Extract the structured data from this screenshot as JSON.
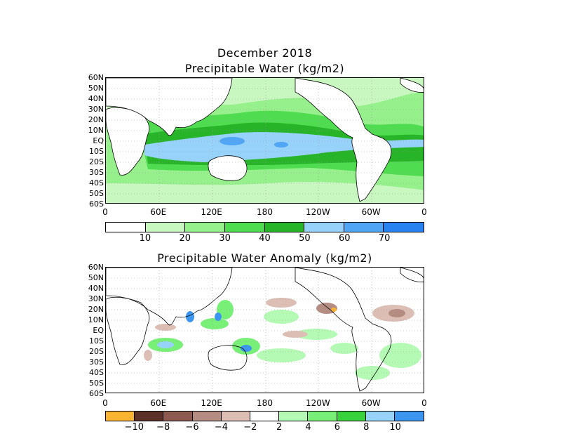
{
  "top_panel": {
    "title_line1": "December 2018",
    "title_line2": "Precipitable Water (kg/m2)",
    "lat_labels": [
      "60N",
      "50N",
      "40N",
      "30N",
      "20N",
      "10N",
      "EQ",
      "10S",
      "20S",
      "30S",
      "40S",
      "50S",
      "60S"
    ],
    "lon_labels": [
      "0",
      "60E",
      "120E",
      "180",
      "120W",
      "60W",
      "0"
    ],
    "colorbar": {
      "colors": [
        "#ffffff",
        "#c8f7c0",
        "#96f08c",
        "#50dc50",
        "#28b428",
        "#96d2fa",
        "#50a5f5",
        "#2882f0"
      ],
      "labels": [
        "10",
        "20",
        "30",
        "40",
        "50",
        "60",
        "70"
      ]
    }
  },
  "bottom_panel": {
    "title": "Precipitable Water Anomaly (kg/m2)",
    "lat_labels": [
      "60N",
      "50N",
      "40N",
      "30N",
      "20N",
      "10N",
      "EQ",
      "10S",
      "20S",
      "30S",
      "40S",
      "50S",
      "60S"
    ],
    "lon_labels": [
      "0",
      "60E",
      "120E",
      "180",
      "120W",
      "60W",
      "0"
    ],
    "colorbar": {
      "colors": [
        "#fab432",
        "#5a3228",
        "#8c5a50",
        "#b48c82",
        "#dcbeb4",
        "#ffffff",
        "#b4fab4",
        "#78f078",
        "#37d23c",
        "#96d2fa",
        "#3c96f0"
      ],
      "labels": [
        "−10",
        "−8",
        "−6",
        "−4",
        "−2",
        "2",
        "4",
        "6",
        "8",
        "10"
      ]
    }
  }
}
